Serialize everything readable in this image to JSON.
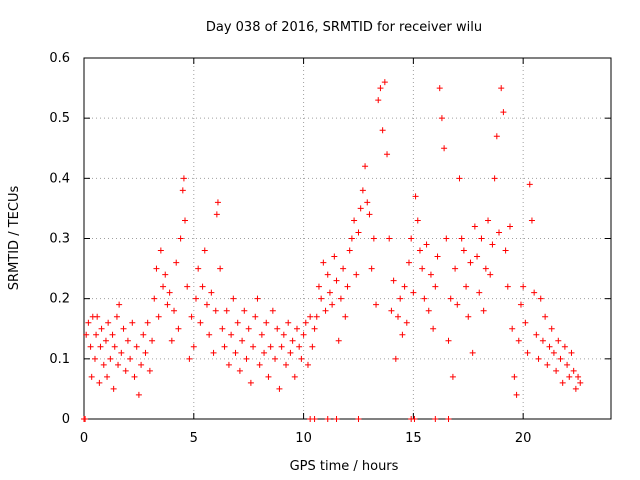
{
  "chart_data": {
    "type": "scatter",
    "title": "Day 038 of 2016, SRMTID for receiver wilu",
    "xlabel": "GPS time / hours",
    "ylabel": "SRMTID / TECUs",
    "xlim": [
      0,
      24
    ],
    "ylim": [
      0,
      0.6
    ],
    "grid": true,
    "marker": "+",
    "x_ticks": [
      0,
      5,
      10,
      15,
      20
    ],
    "x_tick_labels": [
      "0",
      "5",
      "10",
      "15",
      "20"
    ],
    "y_ticks": [
      0,
      0.1,
      0.2,
      0.3,
      0.4,
      0.5,
      0.6
    ],
    "y_tick_labels": [
      "0",
      "0.1",
      "0.2",
      "0.3",
      "0.4",
      "0.5",
      "0.6"
    ],
    "series": [
      {
        "name": "SRMTID",
        "color": "#ff0000",
        "points": [
          [
            0.05,
            0.0
          ],
          [
            0.1,
            0.14
          ],
          [
            0.2,
            0.16
          ],
          [
            0.3,
            0.12
          ],
          [
            0.35,
            0.07
          ],
          [
            0.4,
            0.17
          ],
          [
            0.5,
            0.1
          ],
          [
            0.55,
            0.14
          ],
          [
            0.6,
            0.17
          ],
          [
            0.7,
            0.06
          ],
          [
            0.75,
            0.12
          ],
          [
            0.8,
            0.15
          ],
          [
            0.9,
            0.09
          ],
          [
            1.0,
            0.13
          ],
          [
            1.05,
            0.07
          ],
          [
            1.1,
            0.16
          ],
          [
            1.2,
            0.1
          ],
          [
            1.3,
            0.14
          ],
          [
            1.35,
            0.05
          ],
          [
            1.4,
            0.12
          ],
          [
            1.5,
            0.17
          ],
          [
            1.55,
            0.09
          ],
          [
            1.6,
            0.19
          ],
          [
            1.7,
            0.11
          ],
          [
            1.8,
            0.15
          ],
          [
            1.9,
            0.08
          ],
          [
            2.0,
            0.13
          ],
          [
            2.1,
            0.1
          ],
          [
            2.2,
            0.16
          ],
          [
            2.3,
            0.07
          ],
          [
            2.4,
            0.12
          ],
          [
            2.5,
            0.04
          ],
          [
            2.6,
            0.09
          ],
          [
            2.7,
            0.14
          ],
          [
            2.8,
            0.11
          ],
          [
            2.9,
            0.16
          ],
          [
            3.0,
            0.08
          ],
          [
            3.1,
            0.13
          ],
          [
            3.2,
            0.2
          ],
          [
            3.3,
            0.25
          ],
          [
            3.4,
            0.17
          ],
          [
            3.5,
            0.28
          ],
          [
            3.6,
            0.22
          ],
          [
            3.7,
            0.24
          ],
          [
            3.8,
            0.19
          ],
          [
            3.9,
            0.21
          ],
          [
            4.0,
            0.13
          ],
          [
            4.1,
            0.18
          ],
          [
            4.2,
            0.26
          ],
          [
            4.3,
            0.15
          ],
          [
            4.4,
            0.3
          ],
          [
            4.5,
            0.38
          ],
          [
            4.55,
            0.4
          ],
          [
            4.6,
            0.33
          ],
          [
            4.7,
            0.22
          ],
          [
            4.8,
            0.1
          ],
          [
            4.9,
            0.17
          ],
          [
            5.0,
            0.12
          ],
          [
            5.1,
            0.2
          ],
          [
            5.2,
            0.25
          ],
          [
            5.3,
            0.16
          ],
          [
            5.4,
            0.22
          ],
          [
            5.5,
            0.28
          ],
          [
            5.6,
            0.19
          ],
          [
            5.7,
            0.14
          ],
          [
            5.8,
            0.21
          ],
          [
            5.9,
            0.11
          ],
          [
            6.0,
            0.18
          ],
          [
            6.05,
            0.34
          ],
          [
            6.1,
            0.36
          ],
          [
            6.2,
            0.25
          ],
          [
            6.3,
            0.15
          ],
          [
            6.4,
            0.12
          ],
          [
            6.5,
            0.18
          ],
          [
            6.6,
            0.09
          ],
          [
            6.7,
            0.14
          ],
          [
            6.8,
            0.2
          ],
          [
            6.9,
            0.11
          ],
          [
            7.0,
            0.16
          ],
          [
            7.1,
            0.08
          ],
          [
            7.2,
            0.13
          ],
          [
            7.3,
            0.18
          ],
          [
            7.4,
            0.1
          ],
          [
            7.5,
            0.15
          ],
          [
            7.6,
            0.06
          ],
          [
            7.7,
            0.12
          ],
          [
            7.8,
            0.17
          ],
          [
            7.9,
            0.2
          ],
          [
            8.0,
            0.09
          ],
          [
            8.1,
            0.14
          ],
          [
            8.2,
            0.11
          ],
          [
            8.3,
            0.16
          ],
          [
            8.4,
            0.07
          ],
          [
            8.5,
            0.12
          ],
          [
            8.6,
            0.18
          ],
          [
            8.7,
            0.1
          ],
          [
            8.8,
            0.15
          ],
          [
            8.9,
            0.05
          ],
          [
            9.0,
            0.12
          ],
          [
            9.1,
            0.14
          ],
          [
            9.2,
            0.09
          ],
          [
            9.3,
            0.16
          ],
          [
            9.4,
            0.11
          ],
          [
            9.5,
            0.13
          ],
          [
            9.6,
            0.07
          ],
          [
            9.7,
            0.15
          ],
          [
            9.8,
            0.12
          ],
          [
            9.9,
            0.1
          ],
          [
            10.0,
            0.14
          ],
          [
            10.1,
            0.16
          ],
          [
            10.2,
            0.09
          ],
          [
            10.3,
            0.17
          ],
          [
            10.4,
            0.12
          ],
          [
            10.5,
            0.15
          ],
          [
            10.6,
            0.17
          ],
          [
            10.7,
            0.22
          ],
          [
            10.8,
            0.2
          ],
          [
            10.9,
            0.26
          ],
          [
            11.0,
            0.18
          ],
          [
            11.1,
            0.24
          ],
          [
            11.2,
            0.21
          ],
          [
            11.3,
            0.19
          ],
          [
            11.4,
            0.27
          ],
          [
            11.5,
            0.23
          ],
          [
            11.6,
            0.13
          ],
          [
            11.7,
            0.2
          ],
          [
            11.8,
            0.25
          ],
          [
            11.9,
            0.17
          ],
          [
            12.0,
            0.22
          ],
          [
            12.1,
            0.28
          ],
          [
            12.2,
            0.3
          ],
          [
            12.3,
            0.33
          ],
          [
            12.4,
            0.24
          ],
          [
            12.5,
            0.31
          ],
          [
            12.6,
            0.35
          ],
          [
            12.7,
            0.38
          ],
          [
            12.8,
            0.42
          ],
          [
            12.9,
            0.36
          ],
          [
            13.0,
            0.34
          ],
          [
            13.1,
            0.25
          ],
          [
            13.2,
            0.3
          ],
          [
            13.3,
            0.19
          ],
          [
            13.4,
            0.53
          ],
          [
            13.5,
            0.55
          ],
          [
            13.6,
            0.48
          ],
          [
            13.7,
            0.56
          ],
          [
            13.8,
            0.44
          ],
          [
            13.9,
            0.3
          ],
          [
            14.0,
            0.18
          ],
          [
            14.1,
            0.23
          ],
          [
            14.2,
            0.1
          ],
          [
            14.3,
            0.17
          ],
          [
            14.4,
            0.2
          ],
          [
            14.5,
            0.14
          ],
          [
            14.6,
            0.22
          ],
          [
            14.7,
            0.16
          ],
          [
            14.8,
            0.26
          ],
          [
            14.9,
            0.3
          ],
          [
            15.0,
            0.21
          ],
          [
            15.1,
            0.37
          ],
          [
            15.2,
            0.33
          ],
          [
            15.3,
            0.28
          ],
          [
            15.4,
            0.25
          ],
          [
            15.5,
            0.2
          ],
          [
            15.6,
            0.29
          ],
          [
            15.7,
            0.18
          ],
          [
            15.8,
            0.24
          ],
          [
            15.9,
            0.15
          ],
          [
            16.0,
            0.22
          ],
          [
            16.1,
            0.27
          ],
          [
            16.2,
            0.55
          ],
          [
            16.3,
            0.5
          ],
          [
            16.4,
            0.45
          ],
          [
            16.5,
            0.3
          ],
          [
            16.6,
            0.13
          ],
          [
            16.7,
            0.2
          ],
          [
            16.8,
            0.07
          ],
          [
            16.9,
            0.25
          ],
          [
            17.0,
            0.19
          ],
          [
            17.1,
            0.4
          ],
          [
            17.2,
            0.3
          ],
          [
            17.3,
            0.28
          ],
          [
            17.4,
            0.22
          ],
          [
            17.5,
            0.17
          ],
          [
            17.6,
            0.26
          ],
          [
            17.7,
            0.11
          ],
          [
            17.8,
            0.32
          ],
          [
            17.9,
            0.27
          ],
          [
            18.0,
            0.21
          ],
          [
            18.1,
            0.3
          ],
          [
            18.2,
            0.18
          ],
          [
            18.3,
            0.25
          ],
          [
            18.4,
            0.33
          ],
          [
            18.5,
            0.24
          ],
          [
            18.6,
            0.29
          ],
          [
            18.7,
            0.4
          ],
          [
            18.8,
            0.47
          ],
          [
            18.9,
            0.31
          ],
          [
            19.0,
            0.55
          ],
          [
            19.1,
            0.51
          ],
          [
            19.2,
            0.28
          ],
          [
            19.3,
            0.22
          ],
          [
            19.4,
            0.32
          ],
          [
            19.5,
            0.15
          ],
          [
            19.6,
            0.07
          ],
          [
            19.7,
            0.04
          ],
          [
            19.8,
            0.13
          ],
          [
            19.9,
            0.19
          ],
          [
            20.0,
            0.22
          ],
          [
            20.1,
            0.16
          ],
          [
            20.2,
            0.11
          ],
          [
            20.3,
            0.39
          ],
          [
            20.4,
            0.33
          ],
          [
            20.5,
            0.21
          ],
          [
            20.6,
            0.14
          ],
          [
            20.7,
            0.1
          ],
          [
            20.8,
            0.2
          ],
          [
            20.9,
            0.13
          ],
          [
            21.0,
            0.17
          ],
          [
            21.1,
            0.09
          ],
          [
            21.2,
            0.12
          ],
          [
            21.3,
            0.15
          ],
          [
            21.4,
            0.11
          ],
          [
            21.5,
            0.08
          ],
          [
            21.6,
            0.13
          ],
          [
            21.7,
            0.1
          ],
          [
            21.8,
            0.06
          ],
          [
            21.9,
            0.12
          ],
          [
            22.0,
            0.09
          ],
          [
            22.1,
            0.07
          ],
          [
            22.2,
            0.11
          ],
          [
            22.3,
            0.08
          ],
          [
            22.4,
            0.05
          ],
          [
            22.5,
            0.07
          ],
          [
            22.6,
            0.06
          ],
          [
            0.0,
            0.0
          ],
          [
            10.3,
            0.0
          ],
          [
            10.5,
            0.0
          ],
          [
            11.1,
            0.0
          ],
          [
            11.5,
            0.0
          ],
          [
            12.5,
            0.0
          ],
          [
            14.9,
            0.0
          ],
          [
            15.05,
            0.0
          ],
          [
            16.0,
            0.0
          ],
          [
            16.6,
            0.0
          ]
        ]
      }
    ]
  }
}
